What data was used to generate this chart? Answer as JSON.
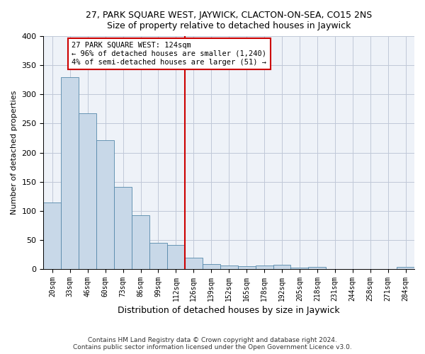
{
  "title1": "27, PARK SQUARE WEST, JAYWICK, CLACTON-ON-SEA, CO15 2NS",
  "title2": "Size of property relative to detached houses in Jaywick",
  "xlabel": "Distribution of detached houses by size in Jaywick",
  "ylabel": "Number of detached properties",
  "categories": [
    "20sqm",
    "33sqm",
    "46sqm",
    "60sqm",
    "73sqm",
    "86sqm",
    "99sqm",
    "112sqm",
    "126sqm",
    "139sqm",
    "152sqm",
    "165sqm",
    "178sqm",
    "192sqm",
    "205sqm",
    "218sqm",
    "231sqm",
    "244sqm",
    "258sqm",
    "271sqm",
    "284sqm"
  ],
  "values": [
    115,
    330,
    267,
    222,
    141,
    92,
    45,
    42,
    19,
    9,
    6,
    5,
    6,
    7,
    3,
    4,
    0,
    0,
    0,
    0,
    4
  ],
  "bar_color": "#c8d8e8",
  "bar_edge_color": "#5588aa",
  "ref_line_bin": 8,
  "ref_line_label": "27 PARK SQUARE WEST: 124sqm",
  "annotation_line1": "← 96% of detached houses are smaller (1,240)",
  "annotation_line2": "4% of semi-detached houses are larger (51) →",
  "ref_line_color": "#cc0000",
  "annotation_box_color": "#cc0000",
  "grid_color": "#c0c8d8",
  "bg_color": "#eef2f8",
  "footer1": "Contains HM Land Registry data © Crown copyright and database right 2024.",
  "footer2": "Contains public sector information licensed under the Open Government Licence v3.0.",
  "ylim": [
    0,
    400
  ],
  "yticks": [
    0,
    50,
    100,
    150,
    200,
    250,
    300,
    350,
    400
  ]
}
